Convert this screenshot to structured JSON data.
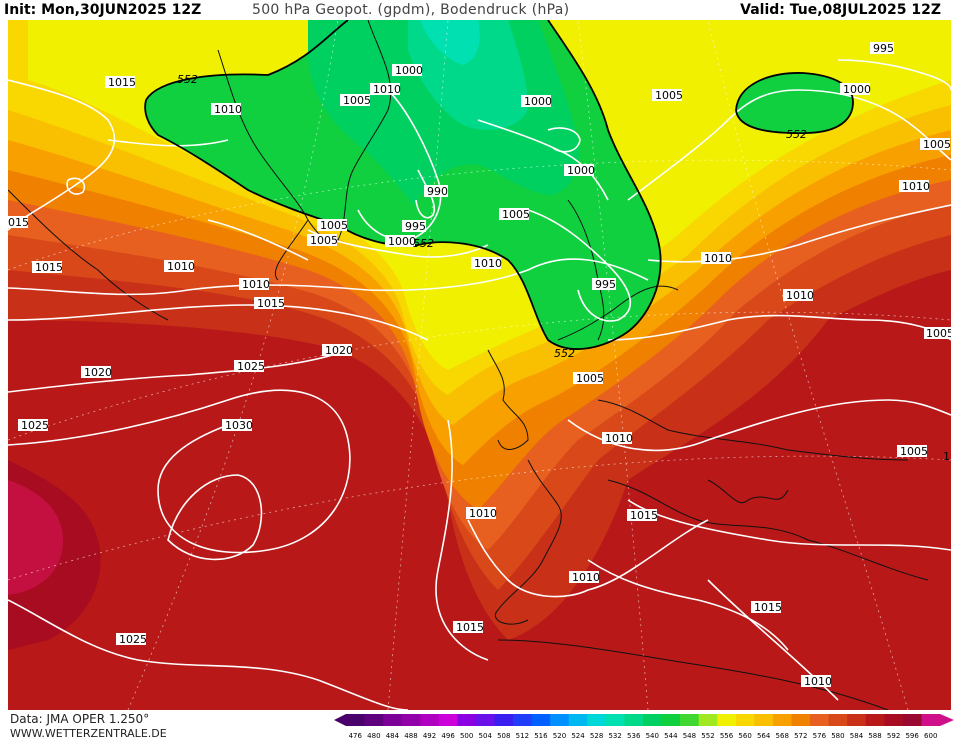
{
  "header": {
    "init": "Init: Mon,30JUN2025 12Z",
    "title": "500 hPa Geopot. (gpdm), Bodendruck (hPa)",
    "valid": "Valid: Tue,08JUL2025 12Z"
  },
  "footer": {
    "source": "Data: JMA OPER 1.250°",
    "website": "WWW.WETTERZENTRALE.DE"
  },
  "legend": {
    "ticks": [
      "476",
      "480",
      "484",
      "488",
      "492",
      "496",
      "500",
      "504",
      "508",
      "512",
      "516",
      "520",
      "524",
      "528",
      "532",
      "536",
      "540",
      "544",
      "548",
      "552",
      "556",
      "560",
      "564",
      "568",
      "572",
      "576",
      "580",
      "584",
      "588",
      "592",
      "596",
      "600"
    ],
    "colors": [
      "#4a006a",
      "#5e007e",
      "#7a0096",
      "#9200a8",
      "#b000c0",
      "#cc00d8",
      "#8a00e0",
      "#6a10e8",
      "#3a1ef0",
      "#1f3cf8",
      "#0060ff",
      "#0090ff",
      "#00b8f0",
      "#00d8d8",
      "#00e0b0",
      "#00d88a",
      "#00d060",
      "#10d040",
      "#40d830",
      "#a0e820",
      "#f0f000",
      "#f8d800",
      "#f8c000",
      "#f8a000",
      "#f08000",
      "#e86020",
      "#d84818",
      "#c83018",
      "#b81818",
      "#a80c20",
      "#980830",
      "#d0108a"
    ]
  },
  "map": {
    "contour_labels": [
      {
        "id": "l1015a",
        "text": "1015"
      },
      {
        "id": "l552a",
        "text": "552"
      },
      {
        "id": "l1010a",
        "text": "1010"
      },
      {
        "id": "l1000a",
        "text": "1000"
      },
      {
        "id": "l1005a",
        "text": "1005"
      },
      {
        "id": "l1010b",
        "text": "1010"
      },
      {
        "id": "l1000b",
        "text": "1000"
      },
      {
        "id": "l1005b",
        "text": "1005"
      },
      {
        "id": "l995a",
        "text": "995"
      },
      {
        "id": "l1000c",
        "text": "1000"
      },
      {
        "id": "l552b",
        "text": "552"
      },
      {
        "id": "l1005c",
        "text": "1005"
      },
      {
        "id": "l1010c",
        "text": "1010"
      },
      {
        "id": "l1005d",
        "text": "1005"
      },
      {
        "id": "l015",
        "text": "015"
      },
      {
        "id": "l1015b",
        "text": "1015"
      },
      {
        "id": "l1010d",
        "text": "1010"
      },
      {
        "id": "l1010e",
        "text": "1010"
      },
      {
        "id": "l1015c",
        "text": "1015"
      },
      {
        "id": "l990",
        "text": "990"
      },
      {
        "id": "l995b",
        "text": "995"
      },
      {
        "id": "l1005e",
        "text": "1005"
      },
      {
        "id": "l1000d",
        "text": "1000"
      },
      {
        "id": "l552c",
        "text": "552"
      },
      {
        "id": "l1005f",
        "text": "1005"
      },
      {
        "id": "l1010f",
        "text": "1010"
      },
      {
        "id": "l1000e",
        "text": "1000"
      },
      {
        "id": "l995c",
        "text": "995"
      },
      {
        "id": "l1010g",
        "text": "1010"
      },
      {
        "id": "l552d",
        "text": "552"
      },
      {
        "id": "l1005g",
        "text": "1005"
      },
      {
        "id": "l1020a",
        "text": "1020"
      },
      {
        "id": "l1020b",
        "text": "1020"
      },
      {
        "id": "l1025a",
        "text": "1025"
      },
      {
        "id": "l1025b",
        "text": "1025"
      },
      {
        "id": "l1030",
        "text": "1030"
      },
      {
        "id": "l1010h",
        "text": "1010"
      },
      {
        "id": "l1005h",
        "text": "1005"
      },
      {
        "id": "l1005i",
        "text": "1005"
      },
      {
        "id": "l1010i",
        "text": "1010"
      },
      {
        "id": "l1015d",
        "text": "1015"
      },
      {
        "id": "l1010j",
        "text": "1010"
      },
      {
        "id": "l1015e",
        "text": "1015"
      },
      {
        "id": "l1015f",
        "text": "1015"
      },
      {
        "id": "l1025c",
        "text": "1025"
      },
      {
        "id": "l1010k",
        "text": "1010"
      },
      {
        "id": "l1edge",
        "text": "1"
      }
    ]
  }
}
